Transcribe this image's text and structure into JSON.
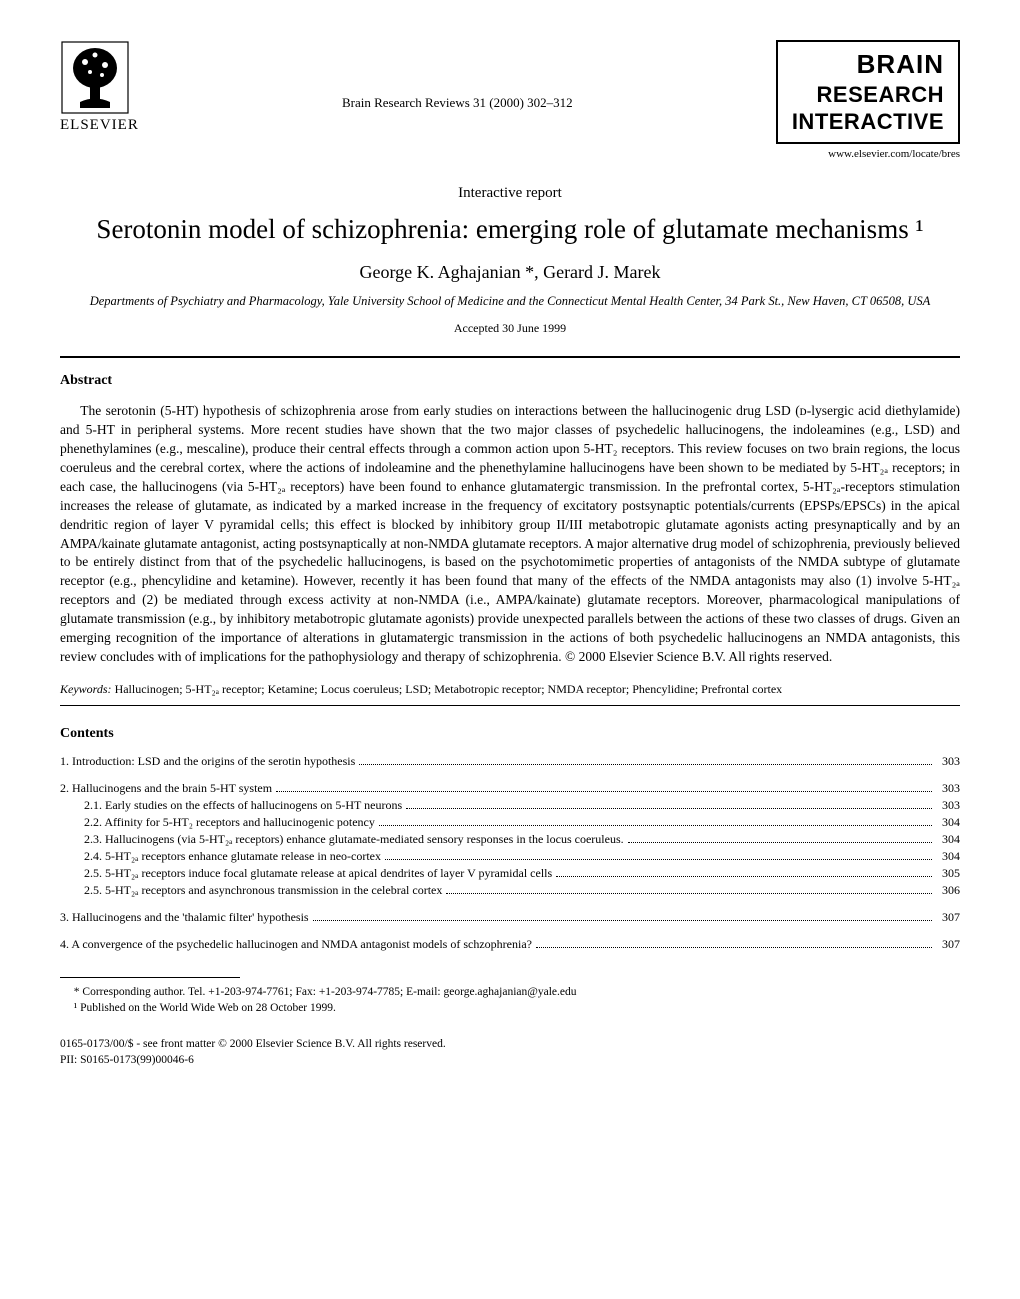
{
  "header": {
    "publisher": "ELSEVIER",
    "journal_ref": "Brain Research Reviews 31 (2000) 302–312",
    "journal_line1": "BRAIN",
    "journal_line2": "RESEARCH",
    "journal_line3": "INTERACTIVE",
    "website": "www.elsevier.com/locate/bres"
  },
  "article": {
    "type": "Interactive report",
    "title": "Serotonin model of schizophrenia: emerging role of glutamate mechanisms ¹",
    "authors": "George K. Aghajanian *, Gerard J. Marek",
    "affiliation": "Departments of Psychiatry and Pharmacology, Yale University School of Medicine and the Connecticut Mental Health Center, 34 Park St., New Haven, CT 06508, USA",
    "accepted": "Accepted 30 June 1999"
  },
  "abstract": {
    "heading": "Abstract",
    "text": "The serotonin (5-HT) hypothesis of schizophrenia arose from early studies on interactions between the hallucinogenic drug LSD (ᴅ-lysergic acid diethylamide) and 5-HT in peripheral systems. More recent studies have shown that the two major classes of psychedelic hallucinogens, the indoleamines (e.g., LSD) and phenethylamines (e.g., mescaline), produce their central effects through a common action upon 5-HT₂ receptors. This review focuses on two brain regions, the locus coeruleus and the cerebral cortex, where the actions of indoleamine and the phenethylamine hallucinogens have been shown to be mediated by 5-HT₂ₐ receptors; in each case, the hallucinogens (via 5-HT₂ₐ receptors) have been found to enhance glutamatergic transmission. In the prefrontal cortex, 5-HT₂ₐ-receptors stimulation increases the release of glutamate, as indicated by a marked increase in the frequency of excitatory postsynaptic potentials/currents (EPSPs/EPSCs) in the apical dendritic region of layer V pyramidal cells; this effect is blocked by inhibitory group II/III metabotropic glutamate agonists acting presynaptically and by an AMPA/kainate glutamate antagonist, acting postsynaptically at non-NMDA glutamate receptors. A major alternative drug model of schizophrenia, previously believed to be entirely distinct from that of the psychedelic hallucinogens, is based on the psychotomimetic properties of antagonists of the NMDA subtype of glutamate receptor (e.g., phencylidine and ketamine). However, recently it has been found that many of the effects of the NMDA antagonists may also (1) involve 5-HT₂ₐ receptors and (2) be mediated through excess activity at non-NMDA (i.e., AMPA/kainate) glutamate receptors. Moreover, pharmacological manipulations of glutamate transmission (e.g., by inhibitory metabotropic glutamate agonists) provide unexpected parallels between the actions of these two classes of drugs. Given an emerging recognition of the importance of alterations in glutamatergic transmission in the actions of both psychedelic hallucinogens an NMDA antagonists, this review concludes with of implications for the pathophysiology and therapy of schizophrenia. © 2000 Elsevier Science B.V. All rights reserved."
  },
  "keywords": {
    "label": "Keywords:",
    "text": "Hallucinogen; 5-HT₂ₐ receptor; Ketamine; Locus coeruleus; LSD; Metabotropic receptor; NMDA receptor; Phencylidine; Prefrontal cortex"
  },
  "contents": {
    "heading": "Contents",
    "entries": [
      {
        "num": "1.",
        "label": "Introduction: LSD and the origins of the serotin hypothesis",
        "page": "303",
        "indent": false,
        "spaced": false
      },
      {
        "num": "2.",
        "label": "Hallucinogens and the brain 5-HT system",
        "page": "303",
        "indent": false,
        "spaced": true
      },
      {
        "num": "2.1.",
        "label": "Early studies on the effects of hallucinogens on 5-HT neurons",
        "page": "303",
        "indent": true,
        "spaced": false
      },
      {
        "num": "2.2.",
        "label": "Affinity for 5-HT₂ receptors and hallucinogenic potency",
        "page": "304",
        "indent": true,
        "spaced": false
      },
      {
        "num": "2.3.",
        "label": "Hallucinogens (via 5-HT₂ₐ receptors) enhance glutamate-mediated sensory responses in the locus coeruleus.",
        "page": "304",
        "indent": true,
        "spaced": false
      },
      {
        "num": "2.4.",
        "label": "5-HT₂ₐ receptors enhance glutamate release in neo-cortex",
        "page": "304",
        "indent": true,
        "spaced": false
      },
      {
        "num": "2.5.",
        "label": "5-HT₂ₐ receptors induce focal glutamate release at apical dendrites of layer V pyramidal cells",
        "page": "305",
        "indent": true,
        "spaced": false
      },
      {
        "num": "2.5.",
        "label": "5-HT₂ₐ receptors and asynchronous transmission in the celebral cortex",
        "page": "306",
        "indent": true,
        "spaced": false
      },
      {
        "num": "3.",
        "label": "Hallucinogens and the 'thalamic filter' hypothesis",
        "page": "307",
        "indent": false,
        "spaced": true
      },
      {
        "num": "4.",
        "label": "A convergence of the psychedelic hallucinogen and NMDA antagonist models of schzophrenia?",
        "page": "307",
        "indent": false,
        "spaced": true
      }
    ]
  },
  "footnotes": {
    "corresponding": "* Corresponding author. Tel. +1-203-974-7761; Fax: +1-203-974-7785; E-mail: george.aghajanian@yale.edu",
    "published": "¹ Published on the World Wide Web on 28 October 1999."
  },
  "bottom": {
    "line1": "0165-0173/00/$ - see front matter © 2000 Elsevier Science B.V. All rights reserved.",
    "line2": "PII: S0165-0173(99)00046-6"
  }
}
